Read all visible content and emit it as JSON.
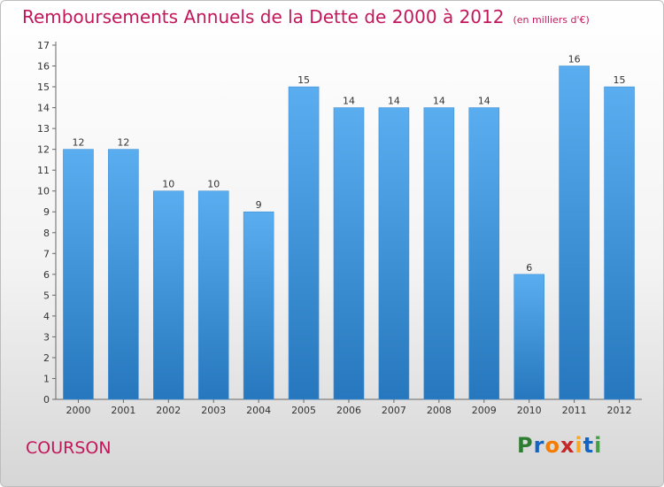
{
  "header": {
    "title": "Remboursements Annuels de la Dette de 2000 à 2012",
    "unit": "(en milliers d'€)"
  },
  "footer": {
    "commune": "COURSON",
    "logo": [
      "P",
      "r",
      "o",
      "x",
      "i",
      "t",
      "i"
    ]
  },
  "colors": {
    "bar": "#4fa3e6",
    "bar_dark": "#2a7dc4",
    "title": "#c2185b",
    "logo": [
      "#2e7d32",
      "#1565c0",
      "#f57c00",
      "#c62828",
      "#f9a825",
      "#1565c0",
      "#43a047"
    ]
  },
  "chart_data": {
    "type": "bar",
    "categories": [
      "2000",
      "2001",
      "2002",
      "2003",
      "2004",
      "2005",
      "2006",
      "2007",
      "2008",
      "2009",
      "2010",
      "2011",
      "2012"
    ],
    "values": [
      12,
      12,
      10,
      10,
      9,
      15,
      14,
      14,
      14,
      14,
      6,
      16,
      15
    ],
    "yticks": [
      0,
      1,
      2,
      3,
      4,
      5,
      6,
      7,
      8,
      9,
      10,
      11,
      12,
      13,
      14,
      15,
      16,
      17
    ],
    "ylim": [
      0,
      17
    ],
    "grid": false,
    "legend": "none"
  }
}
